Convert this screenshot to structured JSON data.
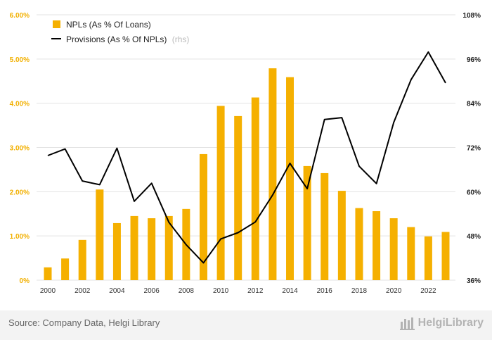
{
  "chart_data": {
    "type": "bar",
    "categories": [
      2000,
      2001,
      2002,
      2003,
      2004,
      2005,
      2006,
      2007,
      2008,
      2009,
      2010,
      2011,
      2012,
      2013,
      2014,
      2015,
      2016,
      2017,
      2018,
      2019,
      2020,
      2021,
      2022,
      2023
    ],
    "series": [
      {
        "name": "NPLs (As % Of Loans)",
        "type": "bar",
        "axis": "left",
        "color": "#f5b000",
        "values": [
          0.29,
          0.49,
          0.91,
          2.05,
          1.29,
          1.45,
          1.4,
          1.45,
          1.61,
          2.85,
          3.94,
          3.71,
          4.13,
          4.79,
          4.59,
          2.58,
          2.42,
          2.02,
          1.63,
          1.56,
          1.4,
          1.2,
          0.99,
          1.09
        ]
      },
      {
        "name": "Provisions (As % Of NPLs)",
        "name_suffix": "(rhs)",
        "type": "line",
        "axis": "right",
        "color": "#000000",
        "values": [
          69.8,
          71.6,
          62.9,
          61.9,
          71.8,
          57.4,
          62.3,
          51.7,
          45.6,
          40.7,
          47.2,
          48.9,
          51.8,
          59.1,
          67.7,
          60.8,
          79.6,
          80.1,
          66.9,
          62.2,
          78.8,
          90.4,
          97.9,
          89.5
        ]
      }
    ],
    "left_axis": {
      "ylim": [
        0,
        6
      ],
      "ticks": [
        "0%",
        "1.00%",
        "2.00%",
        "3.00%",
        "4.00%",
        "5.00%",
        "6.00%"
      ],
      "color": "#f2b000"
    },
    "right_axis": {
      "ylim": [
        36,
        108
      ],
      "ticks": [
        "36%",
        "48%",
        "60%",
        "72%",
        "84%",
        "96%",
        "108%"
      ]
    },
    "x_tick_labels": [
      "2000",
      "2002",
      "2004",
      "2006",
      "2008",
      "2010",
      "2012",
      "2014",
      "2016",
      "2018",
      "2020",
      "2022"
    ],
    "grid": true,
    "legend": "top-left",
    "title": "",
    "xlabel": "",
    "ylabel": ""
  },
  "footer": {
    "source": "Source: Company Data, Helgi Library",
    "logo_text": "HelgiLibrary"
  }
}
